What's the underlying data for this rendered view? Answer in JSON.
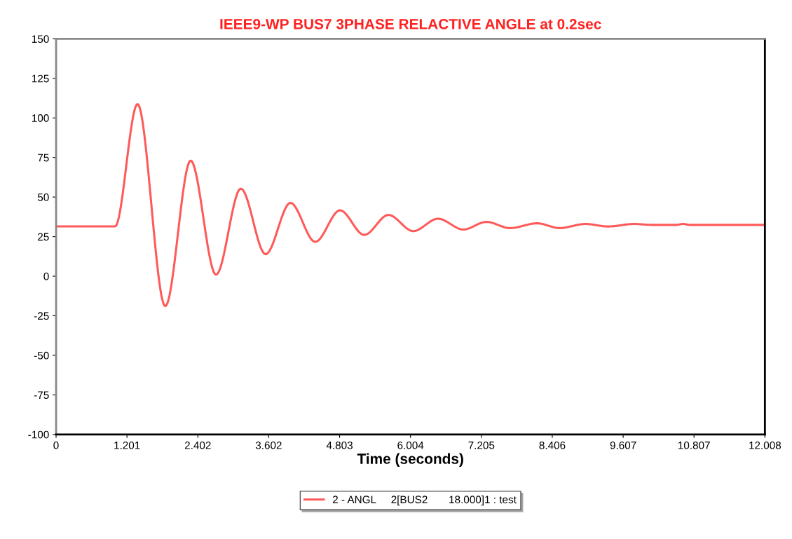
{
  "chart_data": {
    "type": "line",
    "title": "IEEE9-WP BUS7 3PHASE RELACTIVE ANGLE at 0.2sec",
    "xlabel": "Time (seconds)",
    "x": [
      0,
      1.0,
      1.38,
      1.85,
      2.28,
      2.71,
      3.13,
      3.55,
      3.97,
      4.39,
      4.81,
      5.22,
      5.63,
      6.05,
      6.47,
      6.9,
      7.29,
      7.69,
      8.15,
      8.53,
      8.97,
      9.35,
      9.79,
      10.1,
      10.5,
      10.62,
      10.74,
      12.0
    ],
    "series": [
      {
        "name": "2 - ANGL     2[BUS2       18.000]1 : test",
        "color": "#ff5a5a",
        "values": [
          31.5,
          31.5,
          108.7,
          -18.9,
          73,
          1,
          55.3,
          13.9,
          46.3,
          21.7,
          41.6,
          26.1,
          38.7,
          28.5,
          36.3,
          29.5,
          34.3,
          30.4,
          33.4,
          30.4,
          33,
          31.4,
          33,
          32.4,
          32.4,
          33,
          32.4,
          32.4
        ]
      }
    ],
    "xlim": [
      0,
      12.008
    ],
    "ylim": [
      -100,
      150
    ],
    "xticks": [
      0,
      1.201,
      2.402,
      3.602,
      4.803,
      6.004,
      7.205,
      8.406,
      9.607,
      10.807,
      12.008
    ],
    "yticks": [
      -100,
      -75,
      -50,
      -25,
      0,
      25,
      50,
      75,
      100,
      125,
      150
    ],
    "grid": false,
    "legend": "bottom",
    "marker": "none",
    "line_style": "solid"
  }
}
